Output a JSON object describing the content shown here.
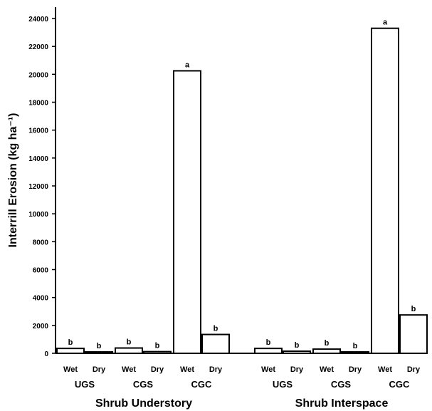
{
  "chart_data": {
    "type": "bar",
    "title": "",
    "ylabel": "Interrill Erosion (kg ha⁻¹)",
    "ylim": [
      0,
      24000
    ],
    "yticks": [
      0,
      2000,
      4000,
      6000,
      8000,
      10000,
      12000,
      14000,
      16000,
      18000,
      20000,
      22000,
      24000
    ],
    "grid": false,
    "groups": [
      {
        "name": "Shrub Understory",
        "treatments": [
          {
            "name": "UGS",
            "bars": [
              {
                "condition": "Wet",
                "value": 350,
                "letter": "b"
              },
              {
                "condition": "Dry",
                "value": 100,
                "letter": "b"
              }
            ]
          },
          {
            "name": "CGS",
            "bars": [
              {
                "condition": "Wet",
                "value": 380,
                "letter": "b"
              },
              {
                "condition": "Dry",
                "value": 120,
                "letter": "b"
              }
            ]
          },
          {
            "name": "CGC",
            "bars": [
              {
                "condition": "Wet",
                "value": 20250,
                "letter": "a"
              },
              {
                "condition": "Dry",
                "value": 1350,
                "letter": "b"
              }
            ]
          }
        ]
      },
      {
        "name": "Shrub Interspace",
        "treatments": [
          {
            "name": "UGS",
            "bars": [
              {
                "condition": "Wet",
                "value": 350,
                "letter": "b"
              },
              {
                "condition": "Dry",
                "value": 150,
                "letter": "b"
              }
            ]
          },
          {
            "name": "CGS",
            "bars": [
              {
                "condition": "Wet",
                "value": 300,
                "letter": "b"
              },
              {
                "condition": "Dry",
                "value": 100,
                "letter": "b"
              }
            ]
          },
          {
            "name": "CGC",
            "bars": [
              {
                "condition": "Wet",
                "value": 23300,
                "letter": "a"
              },
              {
                "condition": "Dry",
                "value": 2750,
                "letter": "b"
              }
            ]
          }
        ]
      }
    ]
  }
}
